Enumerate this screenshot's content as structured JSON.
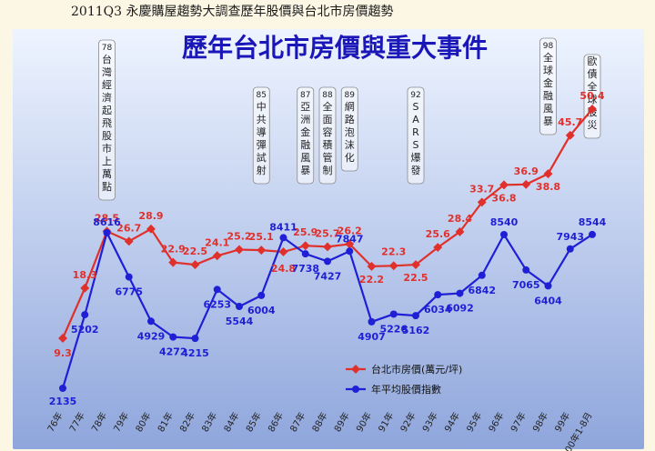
{
  "document": {
    "header": "2011Q3 永慶購屋趨勢大調查歷年股價與台北市房價趨勢"
  },
  "colors": {
    "house_price": "#e0302c",
    "stock_index": "#1f1fd6",
    "title": "#1a16b8",
    "panel_top": "#eef4ff",
    "panel_bottom": "#8fa6dc"
  },
  "chart_data": {
    "type": "line",
    "title": "歷年台北市房價與重大事件",
    "x": [
      "76年",
      "77年",
      "78年",
      "79年",
      "80年",
      "81年",
      "82年",
      "83年",
      "84年",
      "85年",
      "86年",
      "87年",
      "88年",
      "89年",
      "90年",
      "91年",
      "92年",
      "93年",
      "94年",
      "95年",
      "96年",
      "97年",
      "98年",
      "99年",
      "100年1-8月"
    ],
    "series": [
      {
        "name": "台北市房價(萬元/坪)",
        "color": "#e0302c",
        "values": [
          9.3,
          18.3,
          28.5,
          26.7,
          28.9,
          22.9,
          22.5,
          24.1,
          25.2,
          25.1,
          24.8,
          25.9,
          25.7,
          26.2,
          22.2,
          22.3,
          22.5,
          25.6,
          28.4,
          33.7,
          36.8,
          36.9,
          38.8,
          45.7,
          50.4
        ],
        "labels": [
          "9.3",
          "18.3",
          "28.5",
          "26.7",
          "28.9",
          "22.9",
          "22.5",
          "24.1",
          "25.2",
          "25.1",
          "24.8",
          "25.9",
          "25.7",
          "26.2",
          "22.2",
          "22.3",
          "22.5",
          "25.6",
          "28.4",
          "33.7",
          "36.8",
          "36.9",
          "38.8",
          "45.7",
          "50.4"
        ]
      },
      {
        "name": "年平均股價指數",
        "color": "#1f1fd6",
        "values": [
          2135,
          5202,
          8616,
          6775,
          4929,
          4272,
          4215,
          6253,
          5544,
          6004,
          8411,
          7738,
          7427,
          7847,
          4907,
          5226,
          5162,
          6034,
          6092,
          6842,
          8540,
          7065,
          6404,
          7943,
          8544
        ],
        "labels": [
          "2135",
          "5202",
          "8616",
          "6775",
          "4929",
          "4272",
          "4215",
          "6253",
          "5544",
          "6004",
          "8411",
          "7738",
          "7427",
          "7847",
          "4907",
          "5226",
          "5162",
          "6034",
          "6092",
          "6842",
          "8540",
          "7065",
          "6404",
          "7943",
          "8544"
        ]
      }
    ],
    "events": [
      {
        "year_index": 2,
        "year": "78",
        "text": "台灣經濟起飛股市上萬點"
      },
      {
        "year_index": 9,
        "year": "85",
        "text": "中共導彈試射"
      },
      {
        "year_index": 11,
        "year": "87",
        "text": "亞洲金融風暴"
      },
      {
        "year_index": 12,
        "year": "88",
        "text": "全面容積管制"
      },
      {
        "year_index": 13,
        "year": "89",
        "text": "網路泡沫化"
      },
      {
        "year_index": 16,
        "year": "92",
        "text": "SARS爆發"
      },
      {
        "year_index": 22,
        "year": "98",
        "text": "全球金融風暴"
      },
      {
        "year_index": 24,
        "year": "",
        "text": "歐債全球股災"
      }
    ],
    "legend_position": "bottom-right",
    "grid": false
  }
}
